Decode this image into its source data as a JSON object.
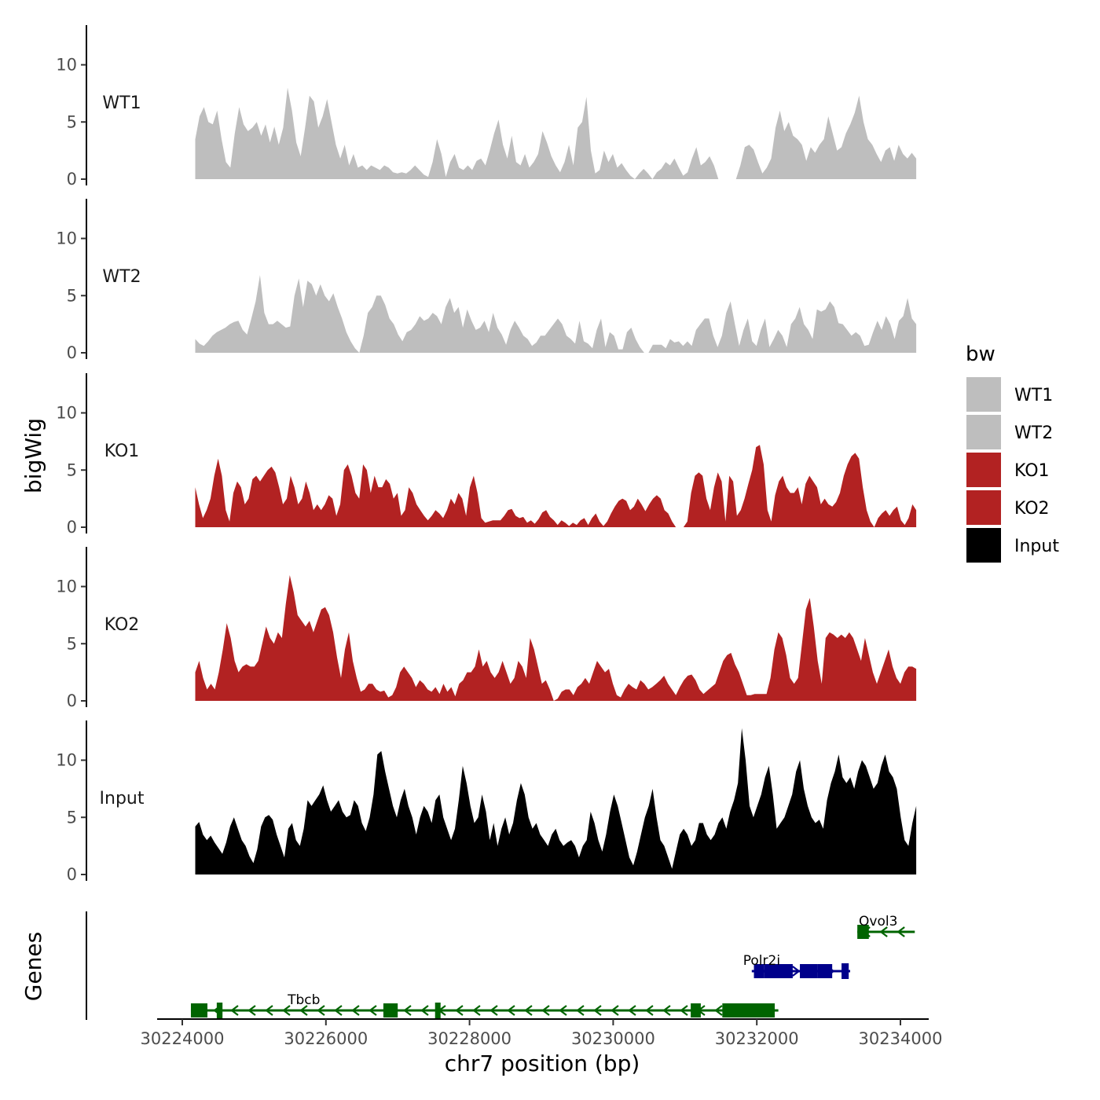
{
  "chart_data": {
    "type": "area",
    "ylabel": "bigWig",
    "genes_label": "Genes",
    "xlabel": "chr7 position (bp)",
    "x_ticks": [
      30224000,
      30226000,
      30228000,
      30230000,
      30232000,
      30234000
    ],
    "x_tick_labels": [
      "30224000",
      "30226000",
      "30228000",
      "30230000",
      "30232000",
      "30234000"
    ],
    "xlim": [
      30223700,
      30234400
    ],
    "x_range": [
      30224180,
      30234220
    ],
    "ylim": [
      0,
      13
    ],
    "y_ticks": [
      0,
      5,
      10
    ],
    "y_tick_labels": [
      "0",
      "5",
      "10"
    ],
    "legend": {
      "title": "bw",
      "entries": [
        {
          "label": "WT1",
          "color": "#bebebe"
        },
        {
          "label": "WT2",
          "color": "#bebebe"
        },
        {
          "label": "KO1",
          "color": "#b22222"
        },
        {
          "label": "KO2",
          "color": "#b22222"
        },
        {
          "label": "Input",
          "color": "#000000"
        }
      ]
    },
    "series": [
      {
        "name": "WT1",
        "color": "#bebebe",
        "values": [
          3.5,
          5.5,
          6.3,
          5.0,
          4.8,
          6.0,
          3.5,
          1.5,
          1.0,
          4.0,
          6.3,
          4.8,
          4.2,
          4.5,
          5.0,
          3.8,
          4.8,
          3.2,
          4.6,
          3.0,
          4.5,
          8.0,
          6.0,
          3.2,
          2.0,
          4.5,
          7.3,
          6.8,
          4.5,
          5.5,
          7.0,
          5.0,
          3.0,
          1.8,
          3.0,
          1.2,
          2.2,
          1.0,
          1.2,
          0.8,
          1.2,
          1.0,
          0.8,
          1.2,
          1.0,
          0.6,
          0.5,
          0.6,
          0.5,
          0.8,
          1.2,
          0.8,
          0.4,
          0.2,
          1.5,
          3.5,
          2.2,
          0.2,
          1.5,
          2.2,
          1.0,
          0.8,
          1.2,
          0.8,
          1.6,
          1.8,
          1.2,
          2.5,
          4.0,
          5.2,
          3.0,
          1.8,
          3.8,
          1.5,
          1.2,
          2.2,
          1.0,
          1.5,
          2.2,
          4.2,
          3.2,
          2.0,
          1.2,
          0.6,
          1.5,
          3.0,
          1.2,
          4.5,
          5.0,
          7.2,
          2.5,
          0.5,
          0.8,
          2.5,
          1.5,
          2.2,
          1.0,
          1.4,
          0.8,
          0.3,
          0.0,
          0.5,
          0.9,
          0.5,
          0.0,
          0.6,
          0.9,
          1.5,
          1.2,
          1.8,
          1.0,
          0.3,
          0.6,
          1.8,
          2.8,
          1.2,
          1.5,
          2.0,
          1.2,
          0.0,
          0.0,
          0.0,
          0.0,
          0.0,
          1.2,
          2.8,
          3.0,
          2.6,
          1.5,
          0.5,
          1.0,
          1.8,
          4.5,
          6.0,
          4.2,
          5.0,
          3.8,
          3.5,
          3.0,
          1.6,
          2.8,
          2.3,
          3.0,
          3.5,
          5.5,
          4.0,
          2.5,
          2.8,
          4.0,
          4.8,
          5.8,
          7.3,
          5.0,
          3.5,
          3.0,
          2.2,
          1.5,
          2.5,
          2.8,
          1.6,
          3.0,
          2.2,
          1.8,
          2.3,
          1.8
        ]
      },
      {
        "name": "WT2",
        "color": "#bebebe",
        "values": [
          1.2,
          0.8,
          0.6,
          1.0,
          1.5,
          1.8,
          2.0,
          2.2,
          2.5,
          2.7,
          2.8,
          2.0,
          1.6,
          3.0,
          4.5,
          6.8,
          3.5,
          2.5,
          2.5,
          2.8,
          2.5,
          2.2,
          2.3,
          5.0,
          6.5,
          4.0,
          6.3,
          6.0,
          5.0,
          6.0,
          5.0,
          4.5,
          5.2,
          4.0,
          3.0,
          1.8,
          1.0,
          0.4,
          0.0,
          1.5,
          3.5,
          4.0,
          5.0,
          5.0,
          4.2,
          3.0,
          2.5,
          1.6,
          1.0,
          1.8,
          2.0,
          2.5,
          3.2,
          2.8,
          3.0,
          3.5,
          3.2,
          2.5,
          4.0,
          4.8,
          3.5,
          4.0,
          2.2,
          3.8,
          2.8,
          2.0,
          2.2,
          2.8,
          1.8,
          3.5,
          2.2,
          1.6,
          0.7,
          2.0,
          2.8,
          2.2,
          1.5,
          1.2,
          0.6,
          0.9,
          1.5,
          1.5,
          2.0,
          2.5,
          3.0,
          2.5,
          1.5,
          1.2,
          0.8,
          2.8,
          1.0,
          0.8,
          0.4,
          2.0,
          3.0,
          0.5,
          1.8,
          1.5,
          0.3,
          0.3,
          1.8,
          2.2,
          1.2,
          0.5,
          0.0,
          0.0,
          0.7,
          0.7,
          0.7,
          0.4,
          1.2,
          0.9,
          1.0,
          0.6,
          1.0,
          0.6,
          2.0,
          2.5,
          3.0,
          3.0,
          1.5,
          0.5,
          1.5,
          3.5,
          4.5,
          2.5,
          0.6,
          2.0,
          3.0,
          1.0,
          0.6,
          2.0,
          3.0,
          0.5,
          1.2,
          2.0,
          1.5,
          0.5,
          2.5,
          3.0,
          4.0,
          2.5,
          2.0,
          1.2,
          3.8,
          3.6,
          3.8,
          4.5,
          4.0,
          2.6,
          2.5,
          2.0,
          1.5,
          1.8,
          1.5,
          0.6,
          0.7,
          1.8,
          2.8,
          2.0,
          3.2,
          2.5,
          1.2,
          2.8,
          3.2,
          4.8,
          3.0,
          2.5
        ]
      },
      {
        "name": "KO1",
        "color": "#b22222",
        "values": [
          3.5,
          2.0,
          0.8,
          1.5,
          2.5,
          4.5,
          6.0,
          4.5,
          1.5,
          0.5,
          3.0,
          4.0,
          3.5,
          2.0,
          2.5,
          4.2,
          4.5,
          4.0,
          4.5,
          5.0,
          5.3,
          4.8,
          3.5,
          2.0,
          2.5,
          4.5,
          3.5,
          2.0,
          2.5,
          4.0,
          3.0,
          1.5,
          2.0,
          1.5,
          2.0,
          2.8,
          2.5,
          1.0,
          2.0,
          5.0,
          5.5,
          4.5,
          3.0,
          2.5,
          5.5,
          5.0,
          3.0,
          4.5,
          3.5,
          3.5,
          4.2,
          3.8,
          2.5,
          3.0,
          1.0,
          1.5,
          3.5,
          3.0,
          2.0,
          1.5,
          1.0,
          0.6,
          1.0,
          1.5,
          1.2,
          0.8,
          1.5,
          2.5,
          2.0,
          3.0,
          2.5,
          1.0,
          3.5,
          4.5,
          3.0,
          0.8,
          0.4,
          0.5,
          0.6,
          0.6,
          0.6,
          1.0,
          1.5,
          1.6,
          1.0,
          0.8,
          0.9,
          0.4,
          0.6,
          0.3,
          0.7,
          1.3,
          1.5,
          0.9,
          0.6,
          0.2,
          0.6,
          0.4,
          0.1,
          0.4,
          0.2,
          0.6,
          0.8,
          0.2,
          0.8,
          1.2,
          0.5,
          0.1,
          0.5,
          1.2,
          1.8,
          2.3,
          2.5,
          2.3,
          1.5,
          1.8,
          2.5,
          2.0,
          1.4,
          2.0,
          2.5,
          2.8,
          2.5,
          1.5,
          1.2,
          0.5,
          0.0,
          0.0,
          0.0,
          0.5,
          3.0,
          4.5,
          4.8,
          4.5,
          2.5,
          1.5,
          3.5,
          4.8,
          4.0,
          0.5,
          4.5,
          4.0,
          1.0,
          1.5,
          2.5,
          3.8,
          5.0,
          7.0,
          7.2,
          5.5,
          1.5,
          0.5,
          2.8,
          4.0,
          4.5,
          3.5,
          3.0,
          3.0,
          3.5,
          2.0,
          3.8,
          4.5,
          4.0,
          3.5,
          2.0,
          2.5,
          2.0,
          1.8,
          2.2,
          3.0,
          4.5,
          5.5,
          6.2,
          6.5,
          6.0,
          3.5,
          1.5,
          0.5,
          0.0,
          0.8,
          1.2,
          1.5,
          1.0,
          1.5,
          1.8,
          0.6,
          0.2,
          0.8,
          2.0,
          1.5
        ]
      },
      {
        "name": "KO2",
        "color": "#b22222",
        "values": [
          2.5,
          3.5,
          2.0,
          1.0,
          1.5,
          1.0,
          2.5,
          4.5,
          6.8,
          5.5,
          3.5,
          2.5,
          3.0,
          3.2,
          3.0,
          3.0,
          3.5,
          5.0,
          6.5,
          5.5,
          5.0,
          6.0,
          5.5,
          8.5,
          11.0,
          9.5,
          7.5,
          7.0,
          6.5,
          7.0,
          6.0,
          7.0,
          8.0,
          8.2,
          7.5,
          6.0,
          3.8,
          2.0,
          4.5,
          6.0,
          3.5,
          2.0,
          0.8,
          1.0,
          1.5,
          1.5,
          1.0,
          0.8,
          0.9,
          0.3,
          0.5,
          1.2,
          2.5,
          3.0,
          2.5,
          2.0,
          1.2,
          1.8,
          1.5,
          1.0,
          0.8,
          1.2,
          0.6,
          1.5,
          0.8,
          1.2,
          0.4,
          1.5,
          1.8,
          2.5,
          2.5,
          3.0,
          4.5,
          3.0,
          3.5,
          2.5,
          2.0,
          2.5,
          3.5,
          2.5,
          1.5,
          2.0,
          3.5,
          3.0,
          2.0,
          5.5,
          4.5,
          3.0,
          1.5,
          1.8,
          1.0,
          0.0,
          0.2,
          0.8,
          1.0,
          1.0,
          0.5,
          1.2,
          1.5,
          2.0,
          1.5,
          2.5,
          3.5,
          3.0,
          2.5,
          2.8,
          1.5,
          0.5,
          0.3,
          1.0,
          1.5,
          1.2,
          1.0,
          1.8,
          1.5,
          1.0,
          1.2,
          1.5,
          1.8,
          2.2,
          1.5,
          1.0,
          0.5,
          1.2,
          1.8,
          2.2,
          2.3,
          1.8,
          1.0,
          0.6,
          0.9,
          1.2,
          1.5,
          2.5,
          3.5,
          4.0,
          4.2,
          3.2,
          2.5,
          1.5,
          0.5,
          0.5,
          0.6,
          0.6,
          0.6,
          0.6,
          2.0,
          4.5,
          6.0,
          5.5,
          4.0,
          2.0,
          1.5,
          2.0,
          5.0,
          8.0,
          9.0,
          6.5,
          3.5,
          1.5,
          5.5,
          6.0,
          5.8,
          5.5,
          5.8,
          5.5,
          6.0,
          5.5,
          4.5,
          3.5,
          5.5,
          4.0,
          2.5,
          1.5,
          2.5,
          3.5,
          4.5,
          3.0,
          2.0,
          1.5,
          2.5,
          3.0,
          3.0,
          2.8
        ]
      },
      {
        "name": "Input",
        "color": "#000000",
        "values": [
          4.2,
          4.6,
          3.5,
          3.0,
          3.4,
          2.8,
          2.3,
          1.8,
          2.8,
          4.2,
          5.0,
          4.0,
          3.0,
          2.5,
          1.6,
          1.0,
          2.2,
          4.2,
          5.0,
          5.2,
          4.8,
          3.5,
          2.5,
          1.5,
          4.0,
          4.5,
          3.0,
          2.5,
          4.0,
          6.5,
          6.0,
          6.5,
          7.0,
          7.8,
          6.5,
          5.5,
          6.0,
          6.5,
          5.5,
          5.0,
          5.2,
          6.5,
          6.0,
          4.5,
          3.8,
          5.0,
          7.0,
          10.5,
          10.8,
          9.0,
          7.5,
          6.0,
          5.0,
          6.5,
          7.5,
          6.0,
          5.0,
          3.5,
          5.0,
          6.0,
          5.5,
          4.5,
          6.5,
          7.0,
          5.0,
          4.0,
          3.0,
          4.0,
          6.5,
          9.5,
          8.0,
          6.0,
          4.5,
          5.0,
          7.0,
          5.5,
          3.0,
          4.5,
          2.5,
          4.0,
          5.0,
          3.5,
          4.5,
          6.5,
          8.0,
          7.0,
          5.0,
          4.0,
          4.5,
          3.5,
          3.0,
          2.5,
          3.5,
          4.0,
          3.0,
          2.5,
          2.8,
          3.0,
          2.5,
          1.5,
          2.5,
          3.0,
          5.5,
          4.5,
          3.0,
          2.0,
          3.5,
          5.5,
          7.0,
          6.0,
          4.5,
          3.0,
          1.5,
          0.8,
          2.0,
          3.5,
          5.0,
          6.0,
          7.5,
          5.0,
          3.0,
          2.5,
          1.5,
          0.5,
          2.0,
          3.5,
          4.0,
          3.5,
          2.5,
          3.0,
          4.5,
          4.5,
          3.5,
          3.0,
          3.5,
          4.5,
          5.0,
          4.0,
          5.5,
          6.5,
          8.0,
          12.8,
          10.0,
          6.0,
          5.0,
          6.0,
          7.0,
          8.5,
          9.5,
          7.0,
          4.0,
          4.5,
          5.0,
          6.0,
          7.0,
          9.0,
          10.0,
          7.5,
          6.0,
          5.0,
          4.5,
          4.8,
          4.0,
          6.5,
          8.0,
          9.0,
          10.5,
          8.5,
          8.0,
          8.5,
          7.5,
          9.0,
          10.0,
          9.5,
          8.5,
          7.5,
          8.0,
          9.5,
          10.5,
          9.0,
          8.5,
          7.5,
          5.0,
          3.0,
          2.5,
          4.5,
          6.0
        ]
      }
    ],
    "genes": [
      {
        "name": "Tbcb",
        "color": "#006400",
        "strand": "-",
        "row": 0,
        "start": 30224120,
        "end": 30232300,
        "exons": [
          [
            30224120,
            30224350
          ],
          [
            30224480,
            30224560
          ],
          [
            30226800,
            30227000
          ],
          [
            30227520,
            30227590
          ],
          [
            30231080,
            30231220
          ],
          [
            30231520,
            30232250
          ]
        ]
      },
      {
        "name": "Polr2i",
        "color": "#00008b",
        "strand": "+",
        "row": 1,
        "start": 30231930,
        "end": 30233300,
        "exons": [
          [
            30231960,
            30232100
          ],
          [
            30232100,
            30232500
          ],
          [
            30232600,
            30232850
          ],
          [
            30232850,
            30233050
          ],
          [
            30233180,
            30233280
          ]
        ]
      },
      {
        "name": "Ovol3",
        "color": "#006400",
        "strand": "-",
        "row": 2,
        "start": 30233400,
        "end": 30234200,
        "exons": [
          [
            30233400,
            30233560
          ]
        ]
      }
    ]
  }
}
